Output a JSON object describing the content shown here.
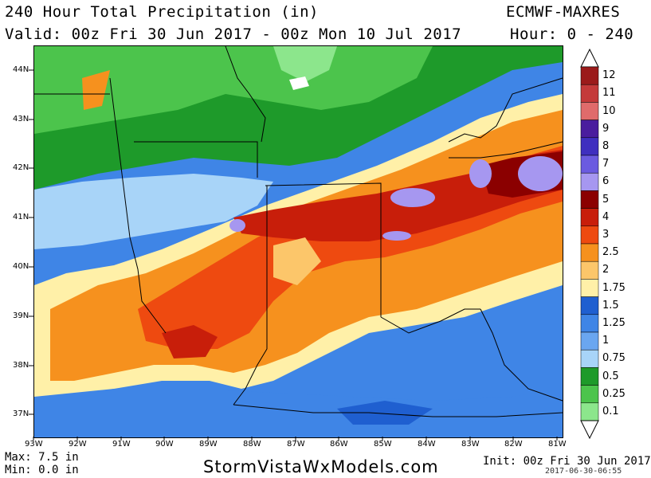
{
  "header": {
    "title": "240 Hour Total Precipitation (in)",
    "valid": "Valid: 00z Fri 30 Jun 2017 - 00z Mon 10 Jul 2017",
    "model": "ECMWF-MAXRES",
    "hours": "Hour: 0 - 240"
  },
  "footer": {
    "max": "Max: 7.5 in",
    "min": "Min: 0.0 in",
    "site": "StormVistaWxModels.com",
    "init": "Init: 00z Fri 30 Jun 2017",
    "stamp": "2017-06-30-06:55"
  },
  "lat_labels": [
    "44N",
    "43N",
    "42N",
    "41N",
    "40N",
    "39N",
    "38N",
    "37N"
  ],
  "lon_labels": [
    "93W",
    "92W",
    "91W",
    "90W",
    "89W",
    "88W",
    "87W",
    "86W",
    "85W",
    "84W",
    "83W",
    "82W",
    "81W"
  ],
  "legend": {
    "levels": [
      "12",
      "11",
      "10",
      "9",
      "8",
      "7",
      "6",
      "5",
      "4",
      "3",
      "2.5",
      "2",
      "1.75",
      "1.5",
      "1.25",
      "1",
      "0.75",
      "0.5",
      "0.25",
      "0.1"
    ],
    "colors": [
      "#9b1b1b",
      "#c43a3a",
      "#e06b6b",
      "#4a1d9e",
      "#3f2fbf",
      "#6b5be0",
      "#a697f0",
      "#8b0000",
      "#c81e0a",
      "#ee4a10",
      "#f6911e",
      "#fcc66a",
      "#fff0a8",
      "#1f5fd0",
      "#3f85e6",
      "#6aa6f0",
      "#a8d4f8",
      "#1e9a2a",
      "#4cc44c",
      "#8ce68c"
    ]
  },
  "colors": {
    "green_light": "#8ce68c",
    "green": "#1e9a2a",
    "blue_light": "#a8d4f8",
    "blue": "#3f85e6",
    "yellow": "#fff0a8",
    "orange": "#f6911e",
    "red": "#c81e0a",
    "purple": "#a697f0"
  }
}
